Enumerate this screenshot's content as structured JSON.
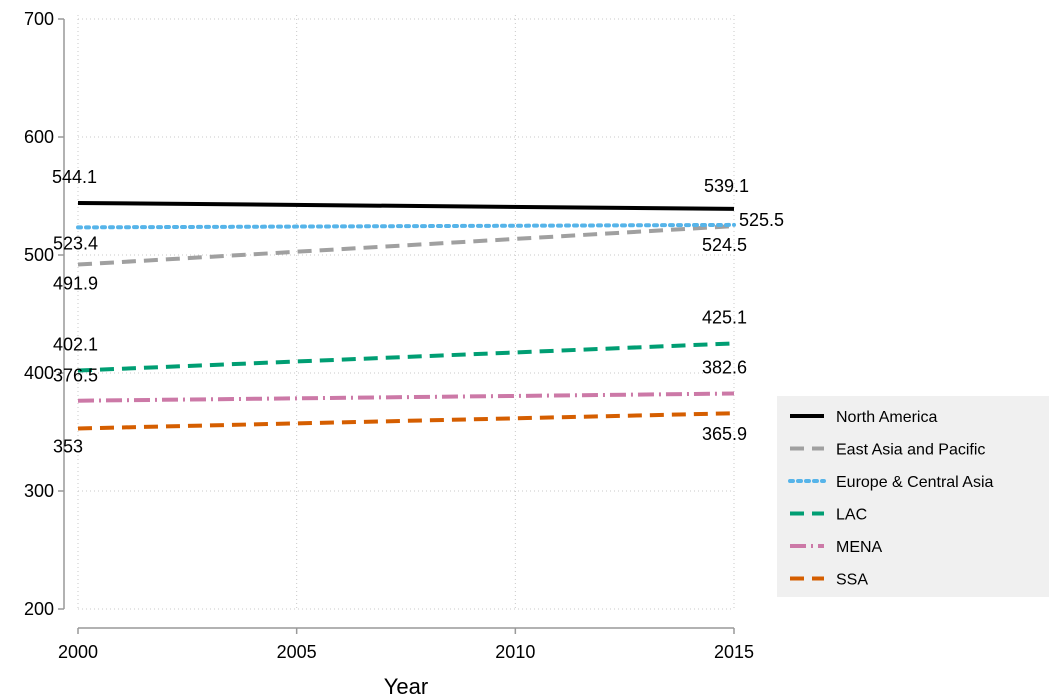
{
  "chart_data": {
    "type": "line",
    "x": [
      2000,
      2015
    ],
    "xticks": [
      2000,
      2005,
      2010,
      2015
    ],
    "yticks": [
      200,
      300,
      400,
      500,
      600,
      700
    ],
    "xlim": [
      2000,
      2015
    ],
    "ylim": [
      200,
      700
    ],
    "xlabel": "Year",
    "ylabel": "",
    "grid": true,
    "legend_position": "right",
    "series": [
      {
        "name": "North America",
        "values": [
          544.1,
          539.1
        ],
        "labels": [
          "544.1",
          "539.1"
        ],
        "color": "#000000",
        "style": "solid"
      },
      {
        "name": "East Asia and Pacific",
        "values": [
          491.9,
          524.5
        ],
        "labels": [
          "491.9",
          "524.5"
        ],
        "color": "#a0a0a0",
        "style": "dashed"
      },
      {
        "name": "Europe & Central Asia",
        "values": [
          523.4,
          525.5
        ],
        "labels": [
          "523.4",
          "525.5"
        ],
        "color": "#56b4e9",
        "style": "dotted"
      },
      {
        "name": "LAC",
        "values": [
          402.1,
          425.1
        ],
        "labels": [
          "402.1",
          "425.1"
        ],
        "color": "#009e73",
        "style": "dashed"
      },
      {
        "name": "MENA",
        "values": [
          376.5,
          382.6
        ],
        "labels": [
          "376.5",
          "382.6"
        ],
        "color": "#cc79a7",
        "style": "dashdot"
      },
      {
        "name": "SSA",
        "values": [
          353,
          365.9
        ],
        "labels": [
          "353",
          "365.9"
        ],
        "color": "#d55e00",
        "style": "dashed"
      }
    ]
  }
}
